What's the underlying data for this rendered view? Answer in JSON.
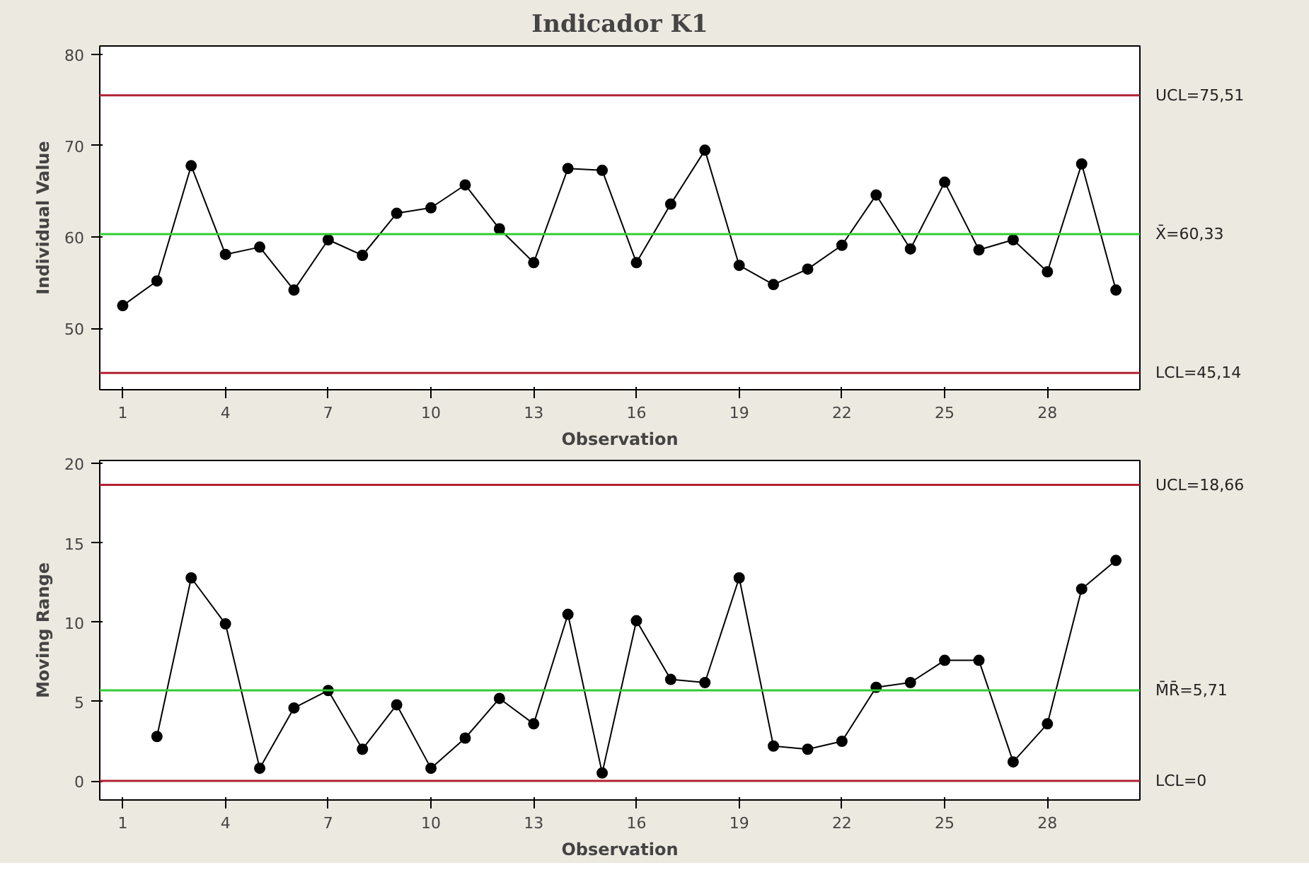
{
  "chart_data": [
    {
      "type": "line",
      "title": "Indicador K1",
      "xlabel": "Observation",
      "ylabel": "Individual Value",
      "x": [
        1,
        2,
        3,
        4,
        5,
        6,
        7,
        8,
        9,
        10,
        11,
        12,
        13,
        14,
        15,
        16,
        17,
        18,
        19,
        20,
        21,
        22,
        23,
        24,
        25,
        26,
        27,
        28,
        29,
        30
      ],
      "series": [
        {
          "color": "#000000",
          "values": [
            52.5,
            55.2,
            67.8,
            58.1,
            58.9,
            54.2,
            59.7,
            58.0,
            62.6,
            63.2,
            65.7,
            60.9,
            57.2,
            67.5,
            67.3,
            57.2,
            63.6,
            69.5,
            56.9,
            54.8,
            56.5,
            59.1,
            64.6,
            58.7,
            66.0,
            58.6,
            59.7,
            56.2,
            68.0,
            54.2
          ]
        }
      ],
      "xlim": [
        0.33,
        30.7
      ],
      "xticks": [
        1,
        4,
        7,
        10,
        13,
        16,
        19,
        22,
        25,
        28
      ],
      "ylim": [
        43.3,
        80.9
      ],
      "yticks": [
        50,
        60,
        70,
        80
      ],
      "ref_lines": [
        {
          "axis": "y",
          "value": 75.51,
          "label": "UCL=75,51",
          "color": "#b22234"
        },
        {
          "axis": "y",
          "value": 60.33,
          "label": "X̄=60,33",
          "color": "#33cc33"
        },
        {
          "axis": "y",
          "value": 45.14,
          "label": "LCL=45,14",
          "color": "#b22234"
        }
      ],
      "marker": "circle",
      "line_style": "solid",
      "grid": false
    },
    {
      "type": "line",
      "xlabel": "Observation",
      "ylabel": "Moving Range",
      "x": [
        2,
        3,
        4,
        5,
        6,
        7,
        8,
        9,
        10,
        11,
        12,
        13,
        14,
        15,
        16,
        17,
        18,
        19,
        20,
        21,
        22,
        23,
        24,
        25,
        26,
        27,
        28,
        29,
        30
      ],
      "series": [
        {
          "color": "#000000",
          "values": [
            2.8,
            12.8,
            9.9,
            0.8,
            4.6,
            5.7,
            2.0,
            4.8,
            0.8,
            2.7,
            5.2,
            3.6,
            10.5,
            0.5,
            10.1,
            6.4,
            6.2,
            12.8,
            2.2,
            2.0,
            2.5,
            5.9,
            6.2,
            7.6,
            7.6,
            1.2,
            3.6,
            12.1,
            13.9
          ]
        }
      ],
      "xlim": [
        0.33,
        30.7
      ],
      "xticks": [
        1,
        4,
        7,
        10,
        13,
        16,
        19,
        22,
        25,
        28
      ],
      "ylim": [
        -1.2,
        20.2
      ],
      "yticks": [
        0,
        5,
        10,
        15,
        20
      ],
      "ref_lines": [
        {
          "axis": "y",
          "value": 18.66,
          "label": "UCL=18,66",
          "color": "#b22234"
        },
        {
          "axis": "y",
          "value": 5.71,
          "label": "M̄R̄=5,71",
          "color": "#33cc33"
        },
        {
          "axis": "y",
          "value": 0,
          "label": "LCL=0",
          "color": "#b22234"
        }
      ],
      "marker": "circle",
      "line_style": "solid",
      "grid": false
    }
  ]
}
